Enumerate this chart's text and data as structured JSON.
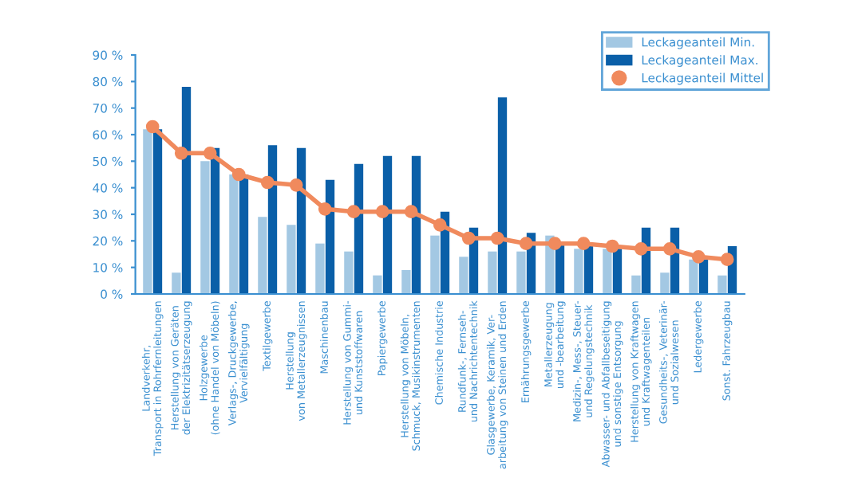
{
  "chart_data": {
    "type": "bar",
    "categories": [
      "Landverkehr,\nTransport in Rohrfernleitungen",
      "Herstellung von Geräten\nder Elektrizitätserzeugung",
      "Holzgewerbe\n(ohne Handel von Möbeln)",
      "Verlags-, Druckgewerbe,\nVervielfältigung",
      "Textilgewerbe",
      "Herstellung\nvon Metallerzeugnissen",
      "Maschinenbau",
      "Herstellung von Gummi-\nund Kunststoffwaren",
      "Papiergewerbe",
      "Herstellung von Möbeln,\nSchmuck, Musikinstrumenten",
      "Chemische Industrie",
      "Rundfunk-, Fernseh-\nund Nachrichtentechnik",
      "Glasgewerbe, Keramik, Ver-\narbeitung von Steinen und Erden",
      "Ernährungsgewerbe",
      "Metallerzeugung\nund -bearbeitung",
      "Medizin-, Mess-, Steuer-\nund Regelungstechnik",
      "Abwasser- und Abfallbeseitigung\nund sonstige Entsorgung",
      "Herstellung von Kraftwagen\nund Kraftwagenteilen",
      "Gesundheits-, Veterinär-\nund Sozialwesen",
      "Ledergewerbe",
      "Sonst. Fahrzeugbau"
    ],
    "series": [
      {
        "name": "Leckageanteil Min.",
        "color": "#a3c8e3",
        "values": [
          62,
          8,
          50,
          45,
          29,
          26,
          19,
          16,
          7,
          9,
          22,
          14,
          16,
          16,
          22,
          17,
          17,
          7,
          8,
          13,
          7
        ]
      },
      {
        "name": "Leckageanteil Max.",
        "color": "#0a5fa8",
        "values": [
          62,
          78,
          55,
          45,
          56,
          55,
          43,
          49,
          52,
          52,
          31,
          25,
          74,
          23,
          19,
          19,
          17,
          25,
          25,
          13,
          18
        ]
      },
      {
        "name": "Leckageanteil Mittel",
        "type": "line",
        "color": "#f08a5d",
        "marker": "circle",
        "values": [
          63,
          53,
          53,
          45,
          42,
          41,
          32,
          31,
          31,
          31,
          26,
          21,
          21,
          19,
          19,
          19,
          18,
          17,
          17,
          14,
          13
        ]
      }
    ],
    "ylim": [
      0,
      90
    ],
    "yticks": [
      {
        "value": 0,
        "label": "0 %"
      },
      {
        "value": 10,
        "label": "10 %"
      },
      {
        "value": 20,
        "label": "20 %"
      },
      {
        "value": 30,
        "label": "30 %"
      },
      {
        "value": 40,
        "label": "40 %"
      },
      {
        "value": 50,
        "label": "50 %"
      },
      {
        "value": 60,
        "label": "60 %"
      },
      {
        "value": 70,
        "label": "70 %"
      },
      {
        "value": 80,
        "label": "80 %"
      },
      {
        "value": 90,
        "label": "90 %"
      }
    ],
    "grid": false,
    "legend": "top right"
  }
}
